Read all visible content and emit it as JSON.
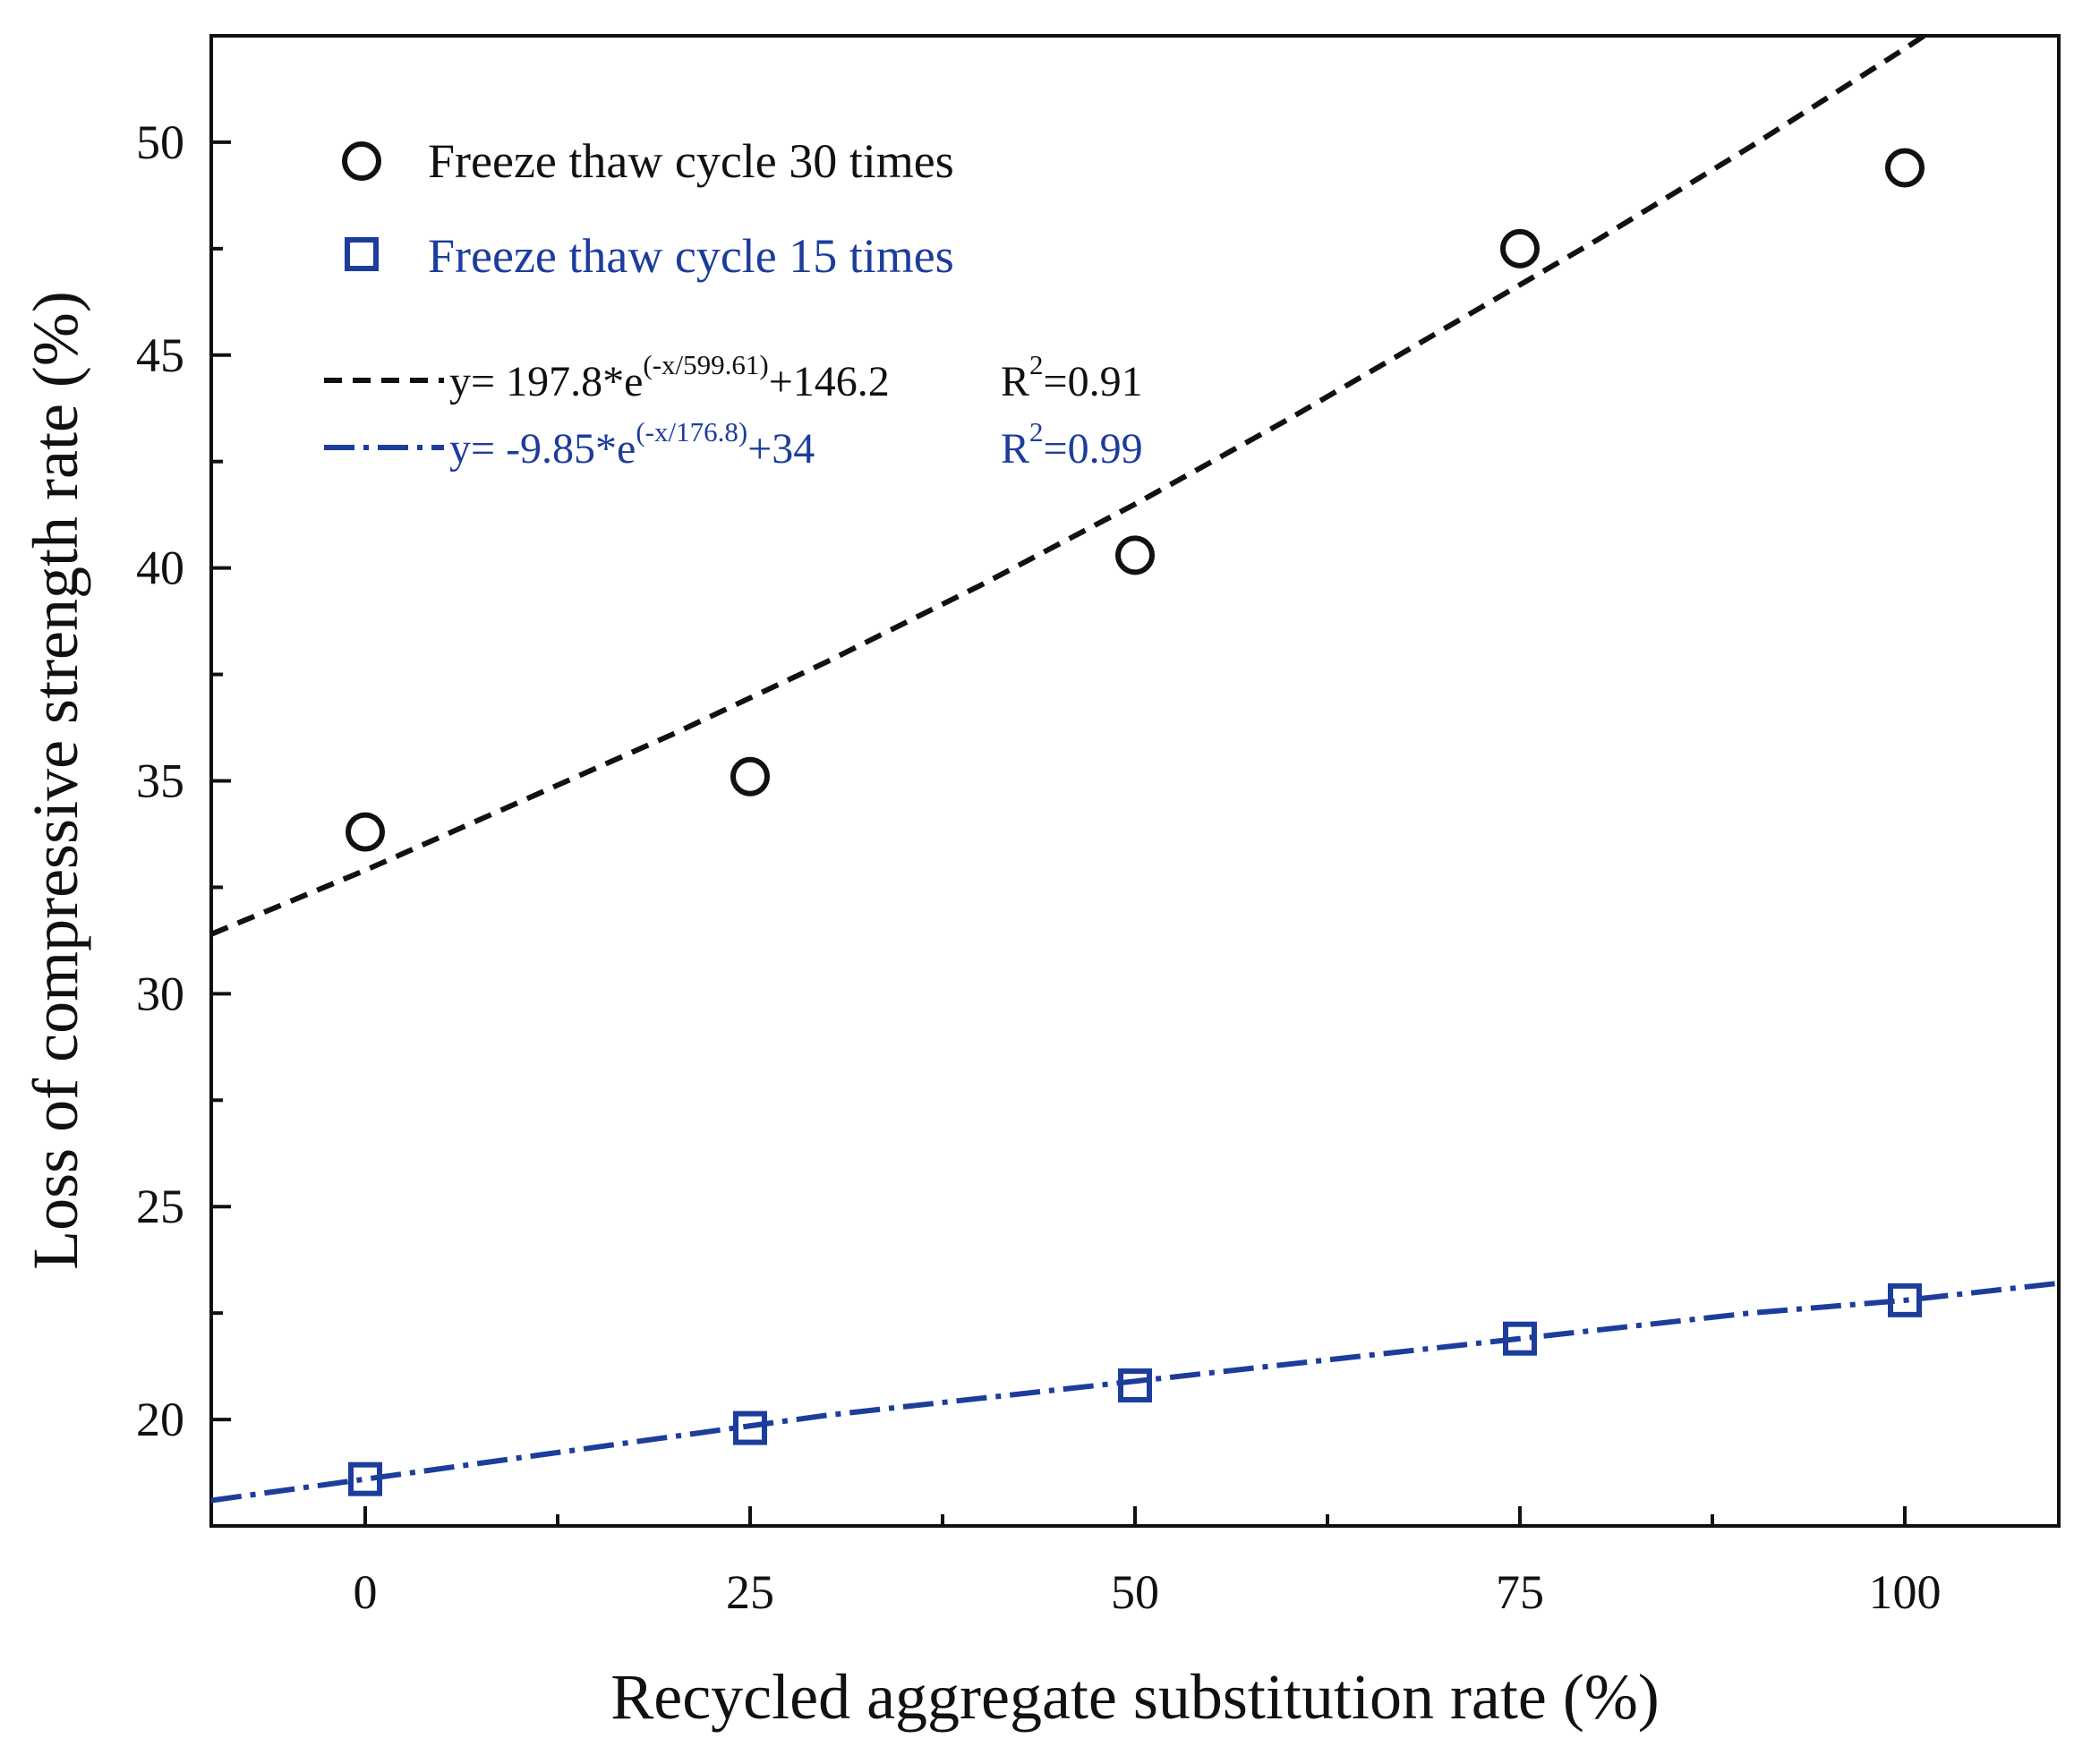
{
  "chart_data": {
    "type": "scatter",
    "xlabel": "Recycled aggregate substitution rate (%)",
    "ylabel": "Loss of compressive strength rate (%)",
    "xlim": [
      -10,
      110
    ],
    "ylim": [
      17.5,
      52.5
    ],
    "x_ticks": [
      0,
      25,
      50,
      75,
      100
    ],
    "x_minor_ticks": [
      12.5,
      37.5,
      62.5,
      87.5
    ],
    "y_ticks": [
      20,
      25,
      30,
      35,
      40,
      45,
      50
    ],
    "y_minor_ticks": [
      22.5,
      27.5,
      32.5,
      37.5,
      42.5,
      47.5
    ],
    "legend_position": "top-left",
    "series": [
      {
        "name": "Freeze thaw cycle 30 times",
        "marker": "circle",
        "color": "#111111",
        "x": [
          0,
          25,
          50,
          75,
          100
        ],
        "y": [
          33.8,
          35.1,
          40.3,
          47.5,
          49.4
        ]
      },
      {
        "name": "Freeze thaw cycle 15 times",
        "marker": "square",
        "color": "#1d3d9b",
        "x": [
          0,
          25,
          50,
          75,
          100
        ],
        "y": [
          18.6,
          19.8,
          20.8,
          21.9,
          22.8
        ]
      }
    ],
    "fits": [
      {
        "color": "#111111",
        "dash": "dashed",
        "eq_prefix": "y= 197.8*e",
        "eq_exp": "(-x/599.61)",
        "eq_suffix": "+146.2",
        "r2_prefix": "R",
        "r2_exp": "2",
        "r2_suffix": "=0.91",
        "x": [
          -10,
          0,
          10,
          20,
          30,
          40,
          50,
          60,
          70,
          80,
          90,
          100,
          110
        ],
        "y": [
          31.4,
          32.9,
          34.5,
          36.1,
          37.8,
          39.6,
          41.5,
          43.5,
          45.6,
          47.7,
          49.9,
          52.2,
          54.6
        ]
      },
      {
        "color": "#1d3d9b",
        "dash": "dash-dot",
        "eq_prefix": "y= -9.85*e",
        "eq_exp": "(-x/176.8)",
        "eq_suffix": "+34",
        "r2_prefix": "R",
        "r2_exp": "2",
        "r2_suffix": "=0.99",
        "x": [
          -10,
          0,
          10,
          20,
          30,
          40,
          50,
          60,
          70,
          80,
          90,
          100,
          110
        ],
        "y": [
          18.1,
          18.6,
          19.1,
          19.6,
          20.1,
          20.5,
          20.9,
          21.3,
          21.7,
          22.1,
          22.5,
          22.8,
          23.2
        ]
      }
    ]
  }
}
